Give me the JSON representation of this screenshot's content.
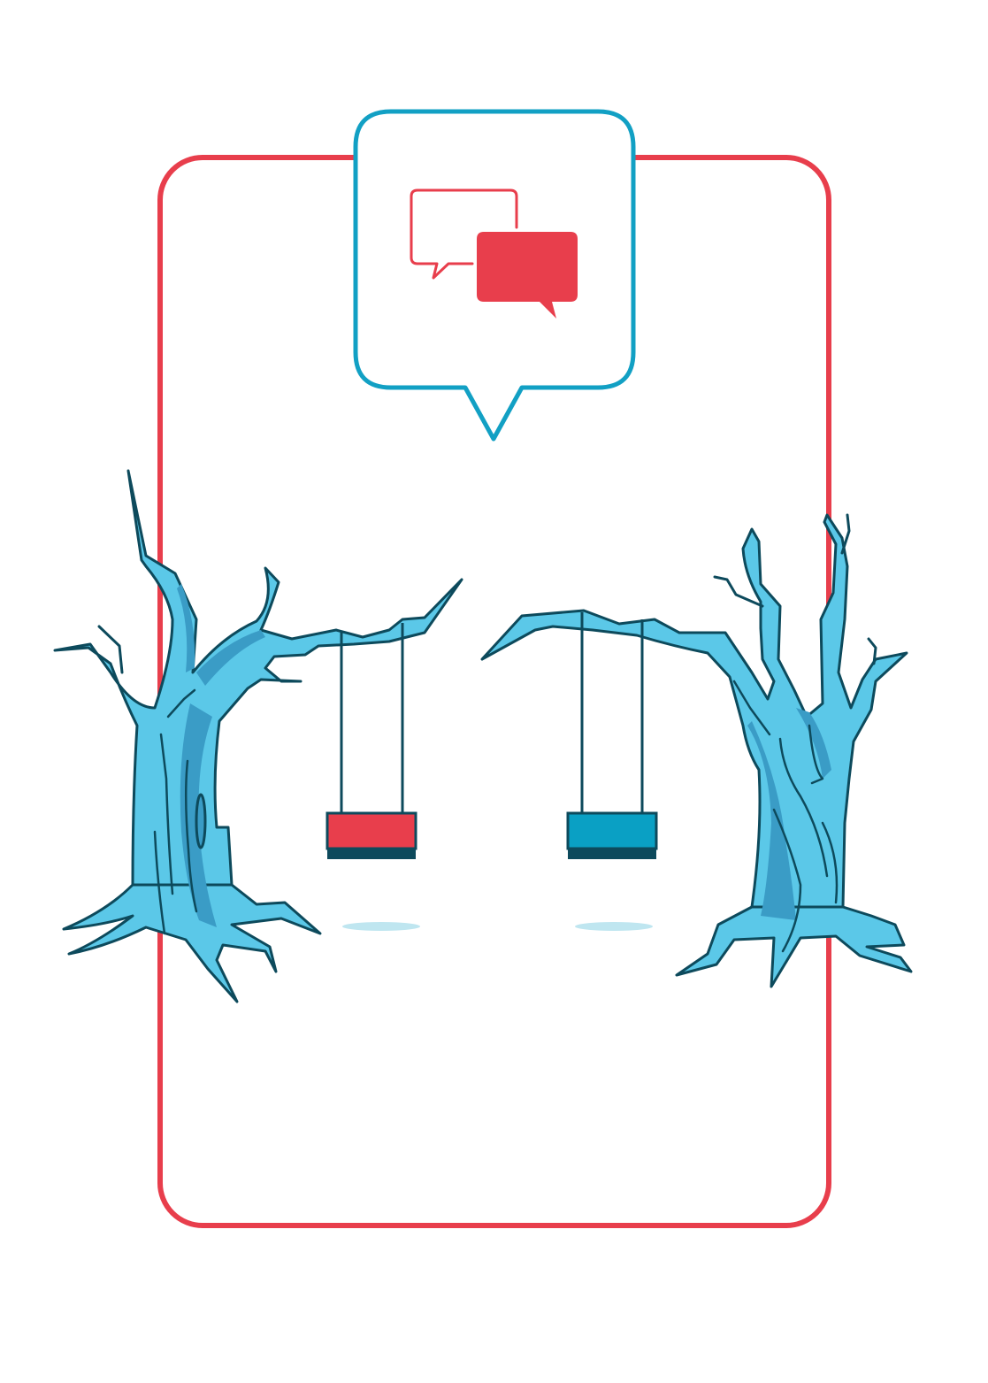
{
  "illustration": {
    "subject": "two-trees-with-swings-and-chat-icon",
    "icons": [
      "chat-bubbles-icon",
      "speech-bubble-frame"
    ],
    "colors": {
      "background": "#ffffff",
      "frame_red": "#e83e4c",
      "bubble_blue": "#12a0c4",
      "tree_light": "#5bc8e8",
      "tree_shade": "#3a9cc6",
      "outline_dark": "#0d4a5c",
      "swing_red": "#e83e4c",
      "swing_blue": "#0aa0c4",
      "shadow": "#bfe6f0"
    }
  }
}
